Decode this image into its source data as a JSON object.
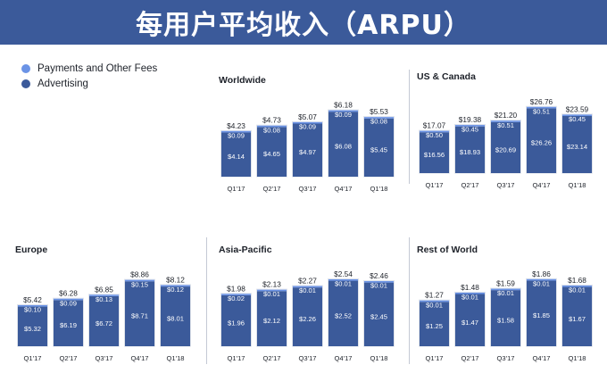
{
  "title": "每用户平均收入（ARPU）",
  "colors": {
    "header_bg": "#3b5a9a",
    "advertising": "#3b5a9a",
    "payments": "#6b93e6",
    "bar_outline": "#dfe3ea",
    "divider": "#c4c9d4"
  },
  "legend": [
    {
      "label": "Payments and Other Fees",
      "color": "#6b93e6"
    },
    {
      "label": "Advertising",
      "color": "#3b5a9a"
    }
  ],
  "chart_data": [
    {
      "type": "bar",
      "stacked": true,
      "title": "Worldwide",
      "categories": [
        "Q1'17",
        "Q2'17",
        "Q3'17",
        "Q4'17",
        "Q1'18"
      ],
      "series": [
        {
          "name": "Advertising",
          "values": [
            4.14,
            4.65,
            4.97,
            6.08,
            5.45
          ],
          "labels": [
            "$4.14",
            "$4.65",
            "$4.97",
            "$6.08",
            "$5.45"
          ]
        },
        {
          "name": "Payments and Other Fees",
          "values": [
            0.09,
            0.08,
            0.09,
            0.09,
            0.08
          ],
          "labels": [
            "$0.09",
            "$0.08",
            "$0.09",
            "$0.09",
            "$0.08"
          ]
        }
      ],
      "totals": [
        4.23,
        4.73,
        5.07,
        6.18,
        5.53
      ],
      "total_labels": [
        "$4.23",
        "$4.73",
        "$5.07",
        "$6.18",
        "$5.53"
      ]
    },
    {
      "type": "bar",
      "stacked": true,
      "title": "US & Canada",
      "categories": [
        "Q1'17",
        "Q2'17",
        "Q3'17",
        "Q4'17",
        "Q1'18"
      ],
      "series": [
        {
          "name": "Advertising",
          "values": [
            16.56,
            18.93,
            20.69,
            26.26,
            23.14
          ],
          "labels": [
            "$16.56",
            "$18.93",
            "$20.69",
            "$26.26",
            "$23.14"
          ]
        },
        {
          "name": "Payments and Other Fees",
          "values": [
            0.5,
            0.45,
            0.51,
            0.51,
            0.45
          ],
          "labels": [
            "$0.50",
            "$0.45",
            "$0.51",
            "$0.51",
            "$0.45"
          ]
        }
      ],
      "totals": [
        17.07,
        19.38,
        21.2,
        26.76,
        23.59
      ],
      "total_labels": [
        "$17.07",
        "$19.38",
        "$21.20",
        "$26.76",
        "$23.59"
      ]
    },
    {
      "type": "bar",
      "stacked": true,
      "title": "Europe",
      "categories": [
        "Q1'17",
        "Q2'17",
        "Q3'17",
        "Q4'17",
        "Q1'18"
      ],
      "series": [
        {
          "name": "Advertising",
          "values": [
            5.32,
            6.19,
            6.72,
            8.71,
            8.01
          ],
          "labels": [
            "$5.32",
            "$6.19",
            "$6.72",
            "$8.71",
            "$8.01"
          ]
        },
        {
          "name": "Payments and Other Fees",
          "values": [
            0.1,
            0.09,
            0.13,
            0.15,
            0.12
          ],
          "labels": [
            "$0.10",
            "$0.09",
            "$0.13",
            "$0.15",
            "$0.12"
          ]
        }
      ],
      "totals": [
        5.42,
        6.28,
        6.85,
        8.86,
        8.12
      ],
      "total_labels": [
        "$5.42",
        "$6.28",
        "$6.85",
        "$8.86",
        "$8.12"
      ]
    },
    {
      "type": "bar",
      "stacked": true,
      "title": "Asia-Pacific",
      "categories": [
        "Q1'17",
        "Q2'17",
        "Q3'17",
        "Q4'17",
        "Q1'18"
      ],
      "series": [
        {
          "name": "Advertising",
          "values": [
            1.96,
            2.12,
            2.26,
            2.52,
            2.45
          ],
          "labels": [
            "$1.96",
            "$2.12",
            "$2.26",
            "$2.52",
            "$2.45"
          ]
        },
        {
          "name": "Payments and Other Fees",
          "values": [
            0.02,
            0.01,
            0.01,
            0.01,
            0.01
          ],
          "labels": [
            "$0.02",
            "$0.01",
            "$0.01",
            "$0.01",
            "$0.01"
          ]
        }
      ],
      "totals": [
        1.98,
        2.13,
        2.27,
        2.54,
        2.46
      ],
      "total_labels": [
        "$1.98",
        "$2.13",
        "$2.27",
        "$2.54",
        "$2.46"
      ]
    },
    {
      "type": "bar",
      "stacked": true,
      "title": "Rest of World",
      "categories": [
        "Q1'17",
        "Q2'17",
        "Q3'17",
        "Q4'17",
        "Q1'18"
      ],
      "series": [
        {
          "name": "Advertising",
          "values": [
            1.25,
            1.47,
            1.58,
            1.85,
            1.67
          ],
          "labels": [
            "$1.25",
            "$1.47",
            "$1.58",
            "$1.85",
            "$1.67"
          ]
        },
        {
          "name": "Payments and Other Fees",
          "values": [
            0.01,
            0.01,
            0.01,
            0.01,
            0.01
          ],
          "labels": [
            "$0.01",
            "$0.01",
            "$0.01",
            "$0.01",
            "$0.01"
          ]
        }
      ],
      "totals": [
        1.27,
        1.48,
        1.59,
        1.86,
        1.68
      ],
      "total_labels": [
        "$1.27",
        "$1.48",
        "$1.59",
        "$1.86",
        "$1.68"
      ]
    }
  ]
}
